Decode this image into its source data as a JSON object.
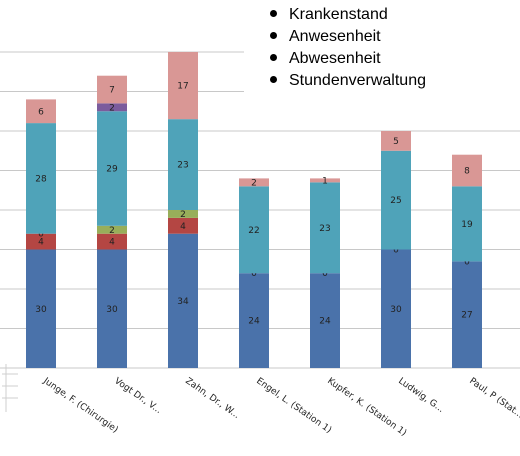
{
  "chart_data": {
    "type": "bar",
    "stacked": true,
    "categories": [
      "Junge, F. (Chirurgie)",
      "Vogt Dr., V...",
      "Zahn, Dr., W...",
      "Engel, L. (Station 1)",
      "Kupfer, K. (Station 1)",
      "Ludwig, G...",
      "Paul, P (Stat..."
    ],
    "series": [
      {
        "name": "",
        "color": "#4a72aa",
        "values": [
          30,
          30,
          34,
          24,
          24,
          30,
          27
        ]
      },
      {
        "name": "",
        "color": "#b44643",
        "values": [
          4,
          4,
          4,
          0,
          0,
          0,
          0
        ]
      },
      {
        "name": "",
        "color": "#98ae5a",
        "values": [
          0,
          2,
          2,
          0,
          0,
          0,
          0
        ]
      },
      {
        "name": "",
        "color": "#4fa3b9",
        "values": [
          28,
          29,
          23,
          22,
          23,
          25,
          19
        ]
      },
      {
        "name": "",
        "color": "#7b5c9d",
        "values": [
          0,
          2,
          0,
          0,
          0,
          0,
          0
        ]
      },
      {
        "name": "",
        "color": "#d99795",
        "values": [
          6,
          7,
          17,
          2,
          1,
          5,
          8
        ]
      }
    ],
    "data_labels": [
      [
        "30",
        "4",
        "0",
        "28",
        "",
        "6"
      ],
      [
        "30",
        "4",
        "2",
        "29",
        "2",
        "7"
      ],
      [
        "34",
        "4",
        "2",
        "23",
        "",
        "17"
      ],
      [
        "24",
        "0",
        "",
        "22",
        "",
        "2"
      ],
      [
        "24",
        "0",
        "",
        "23",
        "",
        "1"
      ],
      [
        "30",
        "0",
        "",
        "25",
        "",
        "5"
      ],
      [
        "27",
        "0",
        "",
        "19",
        "",
        "8"
      ]
    ],
    "ylim": [
      0,
      80
    ],
    "grid": true,
    "legend": {
      "placement": "top-right",
      "items": [
        "Krankenstand",
        "Anwesenheit",
        "Abwesenheit",
        "Stundenverwaltung"
      ]
    },
    "title": "",
    "xlabel": "",
    "ylabel": ""
  }
}
